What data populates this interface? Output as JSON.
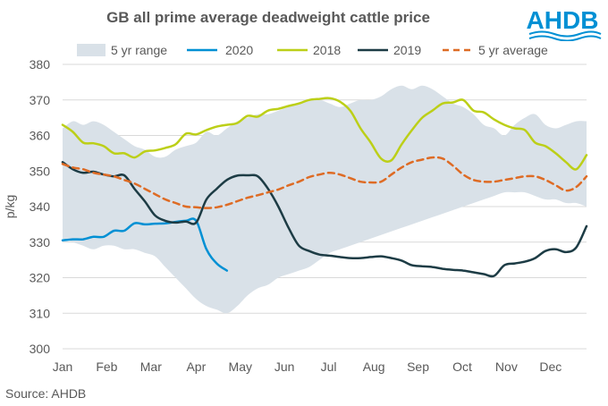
{
  "header": {
    "title": "GB all prime average deadweight cattle price"
  },
  "logo": {
    "text": "AHDB",
    "color": "#0090d4"
  },
  "footer": {
    "source": "Source: AHDB"
  },
  "chart_data": {
    "type": "line",
    "title": "GB all prime average deadweight cattle price",
    "ylabel": "p/kg",
    "xlabel": "",
    "ylim": [
      300,
      380
    ],
    "yticks": [
      300,
      310,
      320,
      330,
      340,
      350,
      360,
      370,
      380
    ],
    "xlim": [
      1,
      52
    ],
    "month_labels": [
      "Jan",
      "Feb",
      "Mar",
      "Apr",
      "May",
      "Jun",
      "Jul",
      "Aug",
      "Sep",
      "Oct",
      "Nov",
      "Dec"
    ],
    "month_positions": [
      1,
      5.3,
      9.6,
      14,
      18.3,
      22.6,
      26.9,
      31.3,
      35.6,
      39.9,
      44.2,
      48.5
    ],
    "legend_position": "top",
    "grid": "horizontal",
    "range": {
      "name": "5 yr range",
      "color": "#d9e1e8",
      "x": [
        1,
        2,
        3,
        4,
        5,
        6,
        7,
        8,
        9,
        10,
        11,
        12,
        13,
        14,
        15,
        16,
        17,
        18,
        19,
        20,
        21,
        22,
        23,
        24,
        25,
        26,
        27,
        28,
        29,
        30,
        31,
        32,
        33,
        34,
        35,
        36,
        37,
        38,
        39,
        40,
        41,
        42,
        43,
        44,
        45,
        46,
        47,
        48,
        49,
        50,
        51,
        52
      ],
      "upper": [
        362,
        364,
        363,
        364,
        363,
        361,
        359,
        357,
        356,
        354,
        354,
        356,
        357,
        358,
        361,
        360,
        362,
        364,
        365,
        366,
        366,
        367,
        368,
        369,
        370,
        370,
        369,
        368,
        369,
        370,
        370,
        371,
        373,
        374,
        373,
        374,
        373,
        371,
        369,
        368,
        366,
        363,
        362,
        360,
        363,
        365,
        366,
        363,
        362,
        363,
        364,
        364
      ],
      "lower": [
        331,
        330,
        329,
        328,
        329,
        329,
        328,
        328,
        327,
        326,
        323,
        320,
        317,
        314,
        312,
        311,
        310,
        312,
        315,
        317,
        318,
        320,
        321,
        322,
        323,
        325,
        327,
        328,
        329,
        330,
        331,
        332,
        333,
        334,
        335,
        336,
        337,
        338,
        339,
        340,
        341,
        342,
        343,
        344,
        344,
        344,
        343,
        342,
        342,
        341,
        341,
        340
      ]
    },
    "series": [
      {
        "name": "2020",
        "color": "#0090d4",
        "dash": "solid",
        "x": [
          1,
          2,
          3,
          4,
          5,
          6,
          7,
          8,
          9,
          10,
          11,
          12,
          13,
          14,
          15,
          16,
          17
        ],
        "values": [
          330.5,
          330.8,
          330.8,
          331.5,
          331.5,
          333.2,
          333.2,
          335.3,
          335.0,
          335.2,
          335.3,
          335.7,
          336.0,
          336.0,
          328.0,
          324.0,
          322.0
        ]
      },
      {
        "name": "2018",
        "color": "#bccf18",
        "dash": "solid",
        "x": [
          1,
          2,
          3,
          4,
          5,
          6,
          7,
          8,
          9,
          10,
          11,
          12,
          13,
          14,
          15,
          16,
          17,
          18,
          19,
          20,
          21,
          22,
          23,
          24,
          25,
          26,
          27,
          28,
          29,
          30,
          31,
          32,
          33,
          34,
          35,
          36,
          37,
          38,
          39,
          40,
          41,
          42,
          43,
          44,
          45,
          46,
          47,
          48,
          49,
          50,
          51,
          52
        ],
        "values": [
          363.0,
          361.0,
          358.0,
          357.8,
          357.0,
          355.0,
          355.0,
          353.8,
          355.5,
          355.8,
          356.5,
          357.5,
          360.5,
          360.3,
          361.5,
          362.5,
          363.0,
          363.5,
          365.5,
          365.3,
          367.0,
          367.5,
          368.3,
          369.0,
          370.0,
          370.3,
          370.5,
          369.5,
          367.0,
          362.0,
          358.0,
          353.5,
          353.0,
          357.5,
          361.5,
          365.0,
          367.0,
          369.0,
          369.3,
          370.0,
          367.0,
          366.5,
          364.5,
          363.0,
          362.0,
          361.5,
          358.0,
          357.0,
          355.0,
          352.5,
          350.5,
          354.5
        ]
      },
      {
        "name": "2019",
        "color": "#1d3c45",
        "dash": "solid",
        "x": [
          1,
          2,
          3,
          4,
          5,
          6,
          7,
          8,
          9,
          10,
          11,
          12,
          13,
          14,
          15,
          16,
          17,
          18,
          19,
          20,
          21,
          22,
          23,
          24,
          25,
          26,
          27,
          28,
          29,
          30,
          31,
          32,
          33,
          34,
          35,
          36,
          37,
          38,
          39,
          40,
          41,
          42,
          43,
          44,
          45,
          46,
          47,
          48,
          49,
          50,
          51,
          52
        ],
        "values": [
          352.5,
          350.5,
          349.5,
          349.8,
          349.0,
          348.5,
          348.8,
          345.0,
          341.5,
          337.5,
          336.0,
          335.5,
          335.8,
          335.5,
          342.0,
          345.0,
          347.5,
          348.7,
          348.8,
          348.5,
          345.0,
          340.0,
          334.0,
          329.0,
          327.5,
          326.5,
          326.2,
          325.8,
          325.5,
          325.5,
          325.8,
          326.0,
          325.5,
          324.8,
          323.5,
          323.2,
          323.0,
          322.5,
          322.2,
          322.0,
          321.5,
          321.0,
          320.5,
          323.5,
          324.0,
          324.5,
          325.5,
          327.5,
          328.0,
          327.2,
          328.5,
          334.5
        ]
      },
      {
        "name": "5 yr average",
        "color": "#de6b24",
        "dash": "dashed",
        "x": [
          1,
          2,
          3,
          4,
          5,
          6,
          7,
          8,
          9,
          10,
          11,
          12,
          13,
          14,
          15,
          16,
          17,
          18,
          19,
          20,
          21,
          22,
          23,
          24,
          25,
          26,
          27,
          28,
          29,
          30,
          31,
          32,
          33,
          34,
          35,
          36,
          37,
          38,
          39,
          40,
          41,
          42,
          43,
          44,
          45,
          46,
          47,
          48,
          49,
          50,
          51,
          52
        ],
        "values": [
          352.0,
          351.0,
          350.5,
          349.5,
          349.0,
          348.5,
          347.5,
          346.5,
          345.0,
          343.5,
          342.0,
          341.0,
          340.0,
          339.8,
          339.6,
          339.8,
          340.5,
          341.5,
          342.5,
          343.2,
          344.0,
          344.8,
          346.0,
          347.0,
          348.3,
          349.0,
          349.5,
          349.0,
          348.0,
          347.0,
          346.8,
          347.0,
          349.0,
          351.0,
          352.5,
          353.2,
          353.8,
          353.5,
          351.5,
          349.0,
          347.5,
          347.0,
          347.0,
          347.5,
          348.0,
          348.5,
          348.5,
          347.5,
          346.0,
          344.5,
          345.5,
          348.5
        ]
      }
    ]
  }
}
